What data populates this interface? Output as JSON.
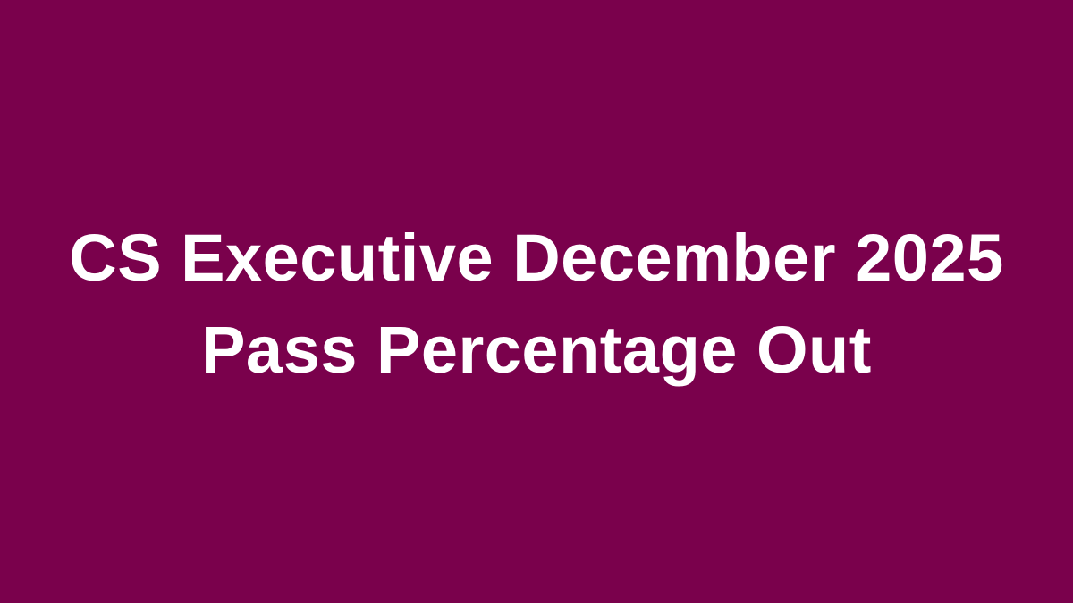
{
  "background_color": "#7a014c",
  "text_color": "#ffffff",
  "headline": {
    "line1": "CS Executive December 2025",
    "line2": "Pass Percentage Out"
  }
}
